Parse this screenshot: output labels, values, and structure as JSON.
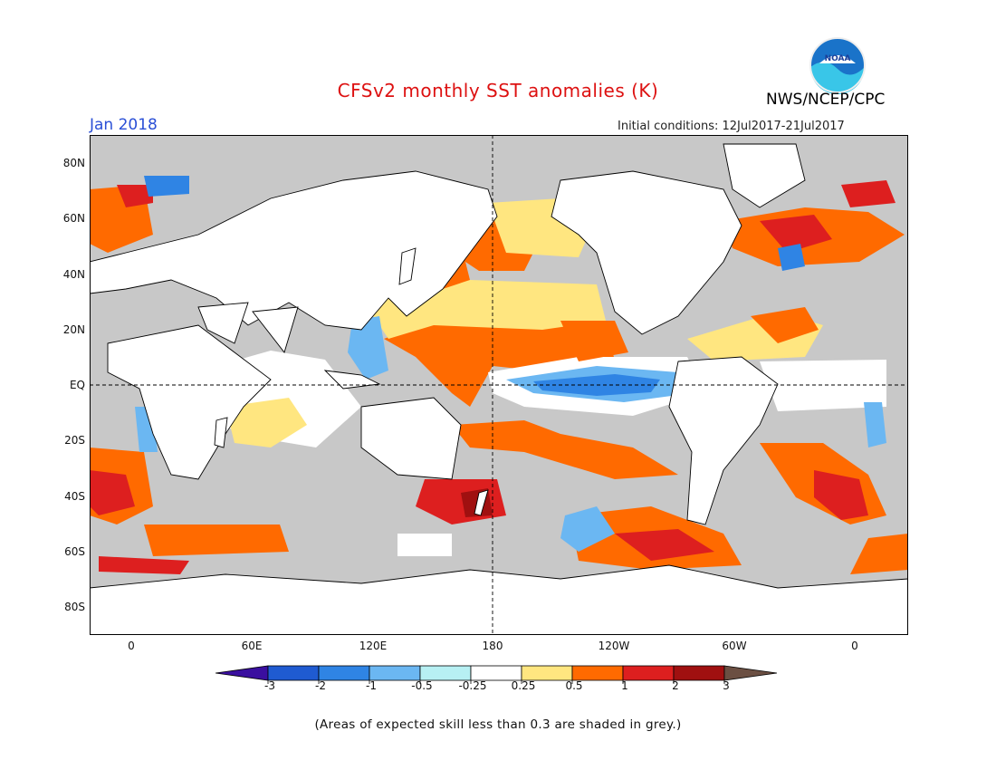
{
  "header": {
    "title": "CFSv2 monthly SST anomalies (K)",
    "title_color": "#dd1111",
    "org": "NWS/NCEP/CPC",
    "period": "Jan 2018",
    "period_color": "#2a4fd6",
    "init_conditions": "Initial conditions: 12Jul2017-21Jul2017",
    "logo_text": "NOAA"
  },
  "map": {
    "projection": "cylindrical",
    "lon_range": [
      -20,
      380
    ],
    "lat_range": [
      -90,
      90
    ],
    "land_color": "#ffffff",
    "low_skill_color": "#c8c8c8",
    "lat_labels": [
      "80N",
      "60N",
      "40N",
      "20N",
      "EQ",
      "20S",
      "40S",
      "60S",
      "80S"
    ],
    "lon_labels": [
      "0",
      "60E",
      "120E",
      "180",
      "120W",
      "60W",
      "0"
    ]
  },
  "colorbar": {
    "tick_labels": [
      "-3",
      "-2",
      "-1",
      "-0.5",
      "-0.25",
      "0.25",
      "0.5",
      "1",
      "2",
      "3"
    ],
    "colors": [
      "#3a0f9f",
      "#1f5bd1",
      "#2f84e4",
      "#6bb7f2",
      "#b7f0f3",
      "#ffffff",
      "#ffe680",
      "#ff6a00",
      "#dd1f1f",
      "#a01010",
      "#6b4f42"
    ]
  },
  "note": "(Areas of expected skill less than 0.3 are shaded in grey.)"
}
